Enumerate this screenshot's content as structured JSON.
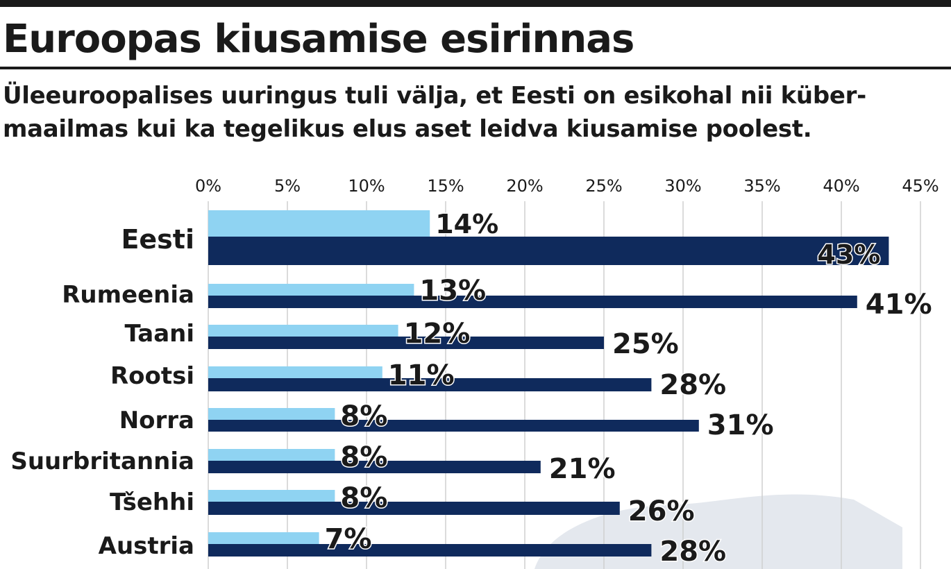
{
  "header": {
    "title": "Euroopas kiusamise esirinnas",
    "subtitle": "Üleeuroopalises uuringus tuli välja, et Eesti on esikohal nii küber-maailmas kui ka tegelikus elus aset leidva kiusamise poolest."
  },
  "chart_data": {
    "type": "bar",
    "orientation": "horizontal",
    "xlim": [
      0,
      45
    ],
    "ticks": [
      0,
      5,
      10,
      15,
      20,
      25,
      30,
      35,
      40,
      45
    ],
    "tick_labels": [
      "0%",
      "5%",
      "10%",
      "15%",
      "20%",
      "25%",
      "30%",
      "35%",
      "40%",
      "45%"
    ],
    "grid": true,
    "categories": [
      "Eesti",
      "Rumeenia",
      "Taani",
      "Rootsi",
      "Norra",
      "Suurbritannia",
      "Tšehhi",
      "Austria"
    ],
    "series": [
      {
        "color": "#8fd3f2",
        "values": [
          14,
          13,
          12,
          11,
          8,
          8,
          8,
          7
        ],
        "labels": [
          "14%",
          "13%",
          "12%",
          "11%",
          "8%",
          "8%",
          "8%",
          "7%"
        ]
      },
      {
        "color": "#0f2a5c",
        "values": [
          43,
          41,
          25,
          28,
          31,
          21,
          26,
          28
        ],
        "labels": [
          "43%",
          "41%",
          "25%",
          "28%",
          "31%",
          "21%",
          "26%",
          "28%"
        ]
      }
    ]
  }
}
